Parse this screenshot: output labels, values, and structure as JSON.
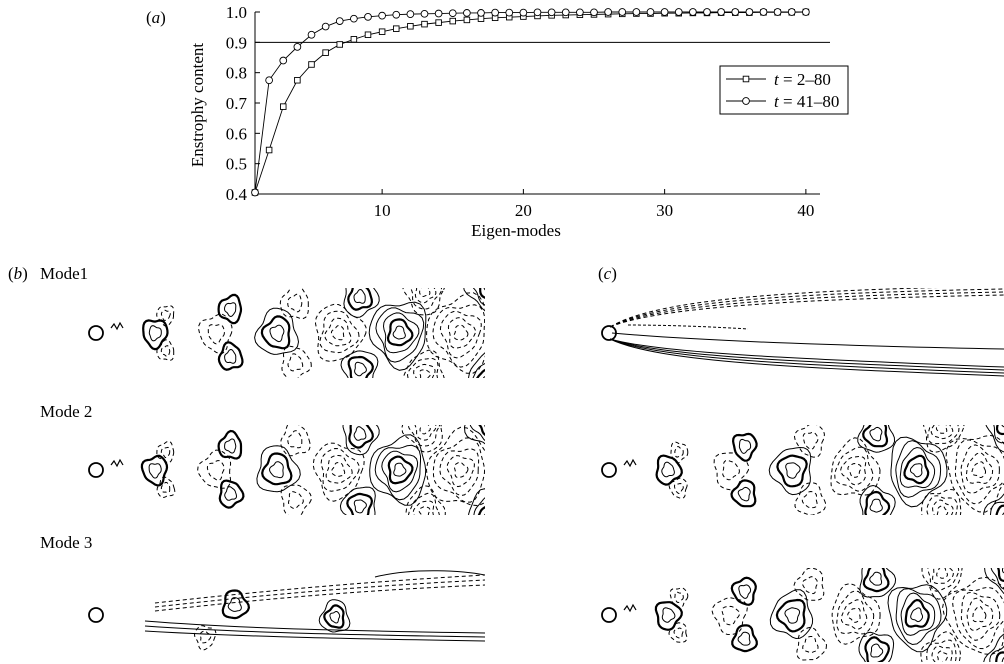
{
  "figure": {
    "panel_a_label": "(a)",
    "panel_b_label": "(b)",
    "panel_c_label": "(c)",
    "mode_labels": [
      "Mode1",
      "Mode 2",
      "Mode 3"
    ]
  },
  "chart_data": {
    "type": "line",
    "title": "",
    "xlabel": "Eigen-modes",
    "ylabel": "Enstrophy content",
    "xlim": [
      1,
      41
    ],
    "ylim": [
      0.4,
      1.0
    ],
    "xticks": [
      10,
      20,
      30,
      40
    ],
    "yticks": [
      0.4,
      0.5,
      0.6,
      0.7,
      0.8,
      0.9,
      1.0
    ],
    "ytick_labels": [
      "0.4",
      "0.5",
      "0.6",
      "0.7",
      "0.8",
      "0.9",
      "1.0"
    ],
    "reference_line": 0.9,
    "legend_position": "right",
    "series": [
      {
        "name": "t = 2–80",
        "legend_italic": "t",
        "legend_rest": " = 2–80",
        "marker": "square",
        "x": [
          1,
          2,
          3,
          4,
          5,
          6,
          7,
          8,
          9,
          10,
          11,
          12,
          13,
          14,
          15,
          16,
          17,
          18,
          19,
          20,
          21,
          22,
          23,
          24,
          25,
          26,
          27,
          28,
          29,
          30,
          31,
          32,
          33,
          34,
          35,
          36,
          37,
          38,
          39,
          40
        ],
        "y": [
          0.405,
          0.545,
          0.688,
          0.775,
          0.827,
          0.866,
          0.893,
          0.91,
          0.925,
          0.935,
          0.945,
          0.953,
          0.96,
          0.965,
          0.97,
          0.974,
          0.978,
          0.981,
          0.983,
          0.985,
          0.987,
          0.989,
          0.99,
          0.991,
          0.992,
          0.993,
          0.994,
          0.995,
          0.995,
          0.996,
          0.996,
          0.997,
          0.997,
          0.998,
          0.998,
          0.998,
          0.999,
          0.999,
          0.999,
          1.0
        ]
      },
      {
        "name": "t = 41–80",
        "legend_italic": "t",
        "legend_rest": " = 41–80",
        "marker": "circle",
        "x": [
          1,
          2,
          3,
          4,
          5,
          6,
          7,
          8,
          9,
          10,
          11,
          12,
          13,
          14,
          15,
          16,
          17,
          18,
          19,
          20,
          21,
          22,
          23,
          24,
          25,
          26,
          27,
          28,
          29,
          30,
          31,
          32,
          33,
          34,
          35,
          36,
          37,
          38,
          39,
          40
        ],
        "y": [
          0.405,
          0.775,
          0.84,
          0.885,
          0.925,
          0.952,
          0.97,
          0.978,
          0.984,
          0.988,
          0.991,
          0.993,
          0.994,
          0.995,
          0.996,
          0.997,
          0.997,
          0.998,
          0.998,
          0.998,
          0.999,
          0.999,
          0.999,
          0.999,
          0.999,
          1.0,
          1.0,
          1.0,
          1.0,
          1.0,
          1.0,
          1.0,
          1.0,
          1.0,
          1.0,
          1.0,
          1.0,
          1.0,
          1.0,
          1.0
        ]
      }
    ]
  }
}
